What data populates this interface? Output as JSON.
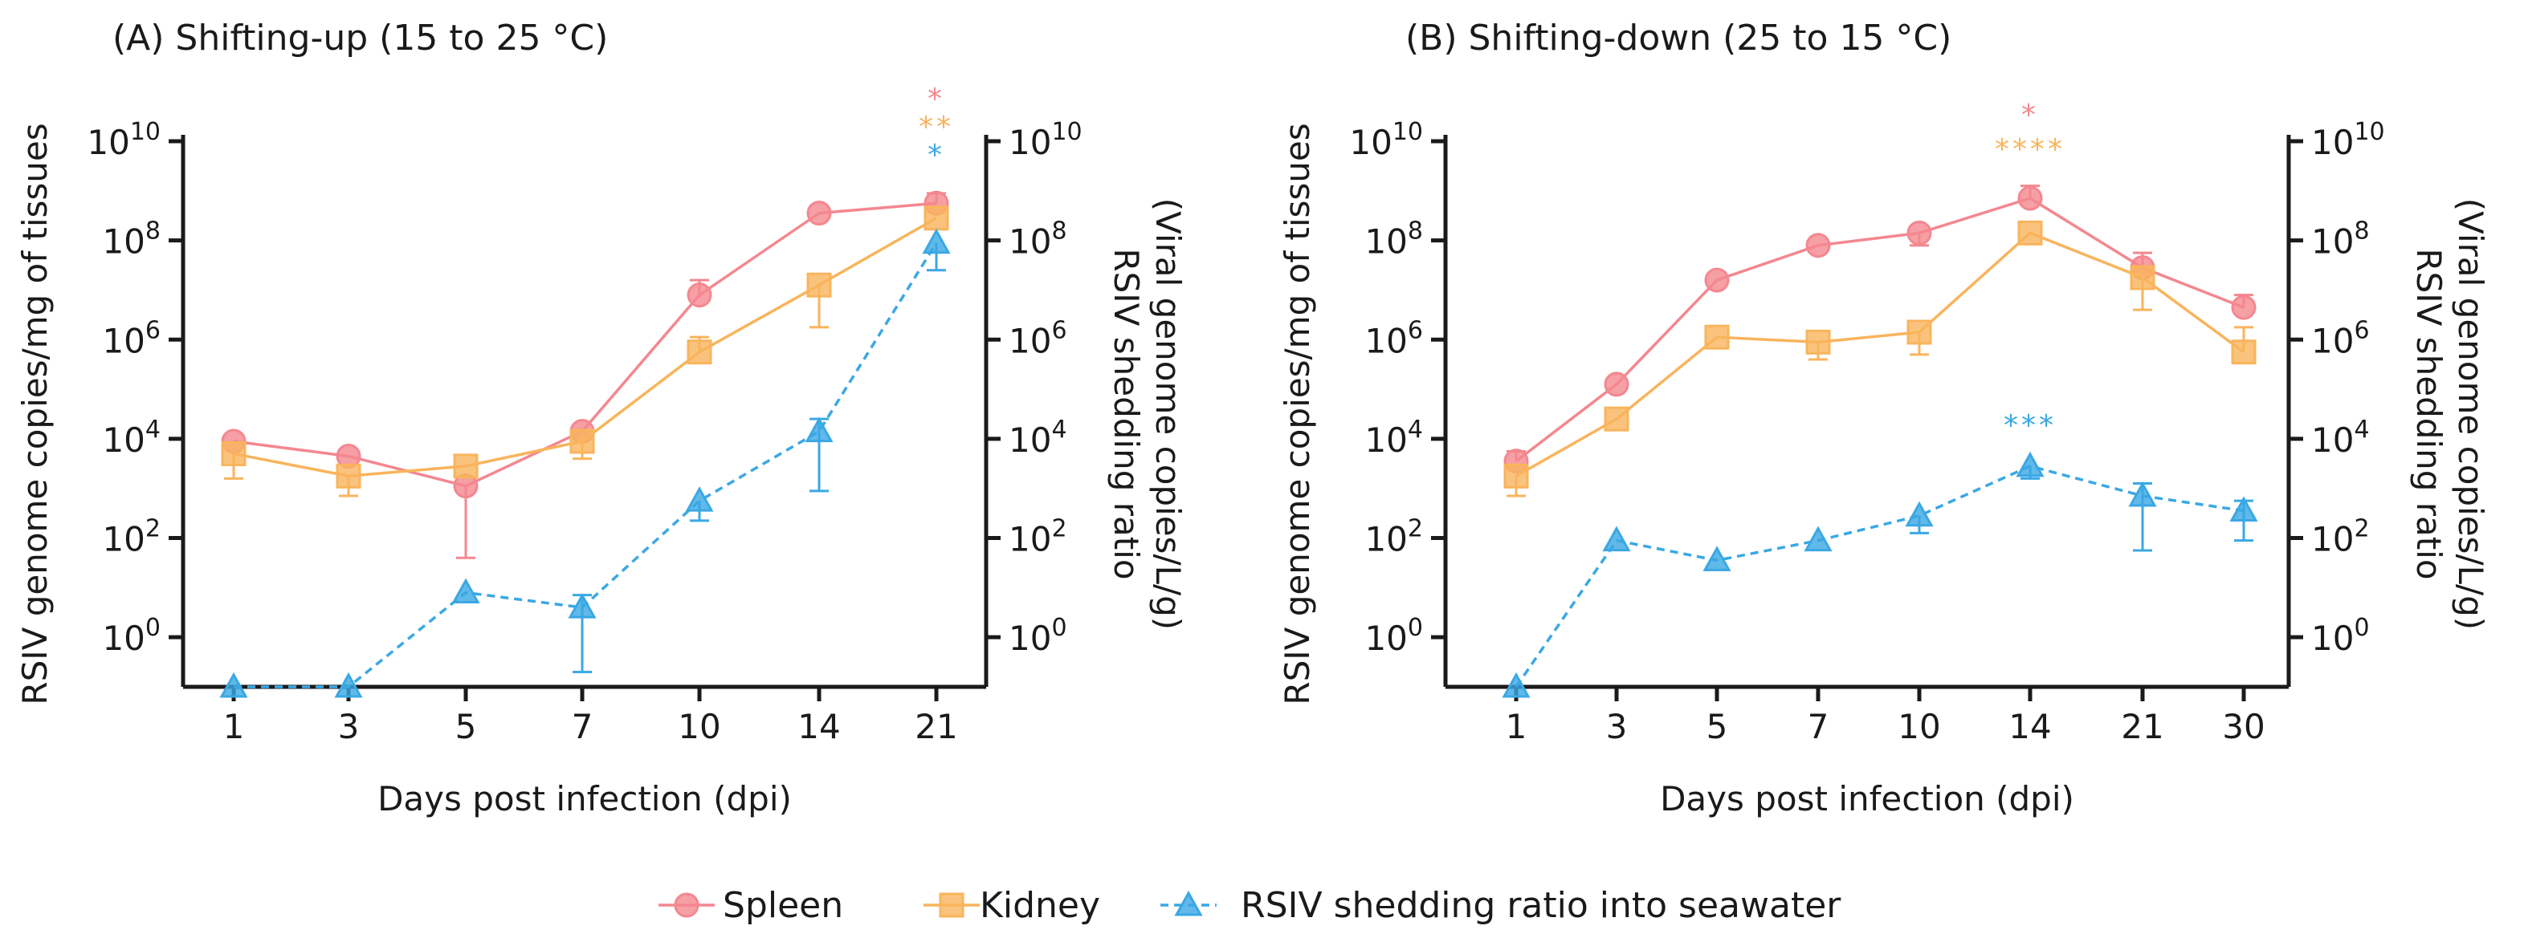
{
  "chart_data": [
    {
      "type": "line",
      "title": "(A) Shifting-up (15 to 25 °C)",
      "xlabel": "Days post infection (dpi)",
      "ylabel_left": "RSIV genome copies/mg of tissues",
      "ylabel_right_1": "RSIV shedding ratio",
      "ylabel_right_2": "(Viral genome copies/L/g)",
      "yscale": "log10",
      "ylim_log10": [
        -1,
        10
      ],
      "ytick_exponents": [
        0,
        2,
        4,
        6,
        8,
        10
      ],
      "ytick_base": "10",
      "categories": [
        "1",
        "3",
        "5",
        "7",
        "10",
        "14",
        "21"
      ],
      "series": [
        {
          "name": "Spleen",
          "key": "spleen",
          "color": "#f4878f",
          "log10": [
            3.95,
            3.65,
            3.05,
            4.15,
            6.9,
            8.55,
            8.75
          ],
          "err_hi_log10": [
            null,
            null,
            null,
            null,
            7.2,
            null,
            8.95
          ],
          "err_lo_log10": [
            null,
            null,
            1.6,
            null,
            null,
            null,
            null
          ]
        },
        {
          "name": "Kidney",
          "key": "kidney",
          "color": "#f9b45c",
          "log10": [
            3.7,
            3.25,
            3.45,
            3.95,
            5.75,
            7.1,
            8.45
          ],
          "err_hi_log10": [
            null,
            null,
            null,
            null,
            6.05,
            null,
            null
          ],
          "err_lo_log10": [
            3.2,
            2.85,
            null,
            3.6,
            null,
            6.25,
            null
          ]
        },
        {
          "name": "RSIV shedding ratio into seawater",
          "key": "shedding",
          "color": "#3aa8e4",
          "log10": [
            -1,
            -1,
            0.9,
            0.6,
            2.75,
            4.15,
            7.95
          ],
          "err_hi_log10": [
            null,
            null,
            null,
            0.85,
            null,
            4.4,
            null
          ],
          "err_lo_log10": [
            null,
            null,
            null,
            -0.7,
            2.35,
            2.95,
            7.4
          ]
        }
      ],
      "significance": [
        {
          "category": "21",
          "key": "spleen",
          "label": "*"
        },
        {
          "category": "21",
          "key": "kidney",
          "label": "**"
        },
        {
          "category": "21",
          "key": "shedding",
          "label": "*"
        }
      ]
    },
    {
      "type": "line",
      "title": "(B) Shifting-down (25 to 15 °C)",
      "xlabel": "Days post infection (dpi)",
      "ylabel_left": "RSIV genome copies/mg of tissues",
      "ylabel_right_1": "RSIV shedding ratio",
      "ylabel_right_2": "(Viral genome copies/L/g)",
      "yscale": "log10",
      "ylim_log10": [
        -1,
        10
      ],
      "ytick_exponents": [
        0,
        2,
        4,
        6,
        8,
        10
      ],
      "ytick_base": "10",
      "categories": [
        "1",
        "3",
        "5",
        "7",
        "10",
        "14",
        "21",
        "30"
      ],
      "series": [
        {
          "name": "Spleen",
          "key": "spleen",
          "color": "#f4878f",
          "log10": [
            3.55,
            5.1,
            7.2,
            7.9,
            8.15,
            8.85,
            7.45,
            6.65
          ],
          "err_hi_log10": [
            3.75,
            null,
            null,
            null,
            null,
            9.1,
            7.75,
            6.9
          ],
          "err_lo_log10": [
            null,
            null,
            null,
            null,
            7.9,
            null,
            null,
            null
          ]
        },
        {
          "name": "Kidney",
          "key": "kidney",
          "color": "#f9b45c",
          "log10": [
            3.25,
            4.4,
            6.05,
            5.95,
            6.15,
            8.15,
            7.25,
            5.75
          ],
          "err_hi_log10": [
            null,
            null,
            null,
            null,
            null,
            null,
            null,
            6.25
          ],
          "err_lo_log10": [
            2.85,
            null,
            null,
            5.6,
            5.7,
            null,
            6.6,
            null
          ]
        },
        {
          "name": "RSIV shedding ratio into seawater",
          "key": "shedding",
          "color": "#3aa8e4",
          "log10": [
            -1,
            1.95,
            1.55,
            1.95,
            2.45,
            3.45,
            2.85,
            2.55
          ],
          "err_hi_log10": [
            null,
            null,
            null,
            null,
            null,
            null,
            3.1,
            2.75
          ],
          "err_lo_log10": [
            null,
            null,
            null,
            null,
            2.1,
            3.2,
            1.75,
            1.95
          ]
        }
      ],
      "significance": [
        {
          "category": "14",
          "key": "spleen",
          "label": "*"
        },
        {
          "category": "14",
          "key": "kidney",
          "label": "****"
        },
        {
          "category": "14",
          "key": "shedding",
          "label": "***"
        }
      ]
    }
  ],
  "legend": {
    "items": [
      {
        "key": "spleen",
        "label": "Spleen"
      },
      {
        "key": "kidney",
        "label": "Kidney"
      },
      {
        "key": "shedding",
        "label": "RSIV shedding ratio into seawater"
      }
    ]
  }
}
